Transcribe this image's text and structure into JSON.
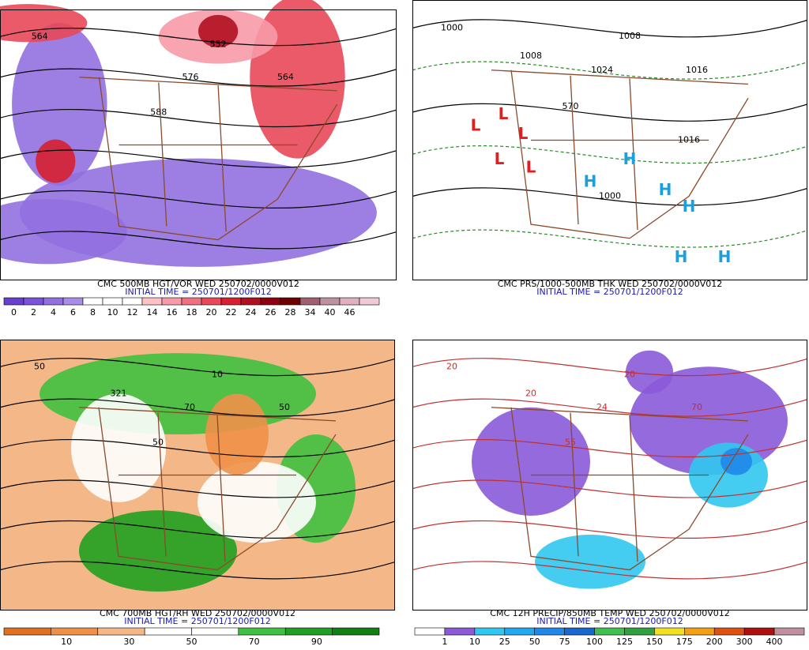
{
  "panels": [
    {
      "caption": "CMC 500MB HGT/VOR WED 250702/0000V012",
      "initial": "INITIAL TIME = 250701/1200F012",
      "colorbar": {
        "colors": [
          "#6a3ed0",
          "#7c52dc",
          "#9270e0",
          "#a88ee8",
          "#ffffff",
          "#ffffff",
          "#ffffff",
          "#ffc0c8",
          "#f89aa8",
          "#f07080",
          "#e84858",
          "#d82030",
          "#b01020",
          "#900010",
          "#700000",
          "#a06070",
          "#c090a0",
          "#e0b0c0",
          "#f0c8d8"
        ],
        "labels": [
          "0",
          "2",
          "4",
          "6",
          "8",
          "10",
          "12",
          "14",
          "16",
          "18",
          "20",
          "22",
          "24",
          "26",
          "28",
          "34",
          "40",
          "46"
        ]
      },
      "map_labels": [
        "564",
        "552",
        "564",
        "576",
        "588"
      ]
    },
    {
      "caption": "CMC PRS/1000-500MB THK WED 250702/0000V012",
      "initial": "INITIAL TIME = 250701/1200F012",
      "map_labels": [
        "1000",
        "1008",
        "1016",
        "1024",
        "570",
        "1008",
        "1016",
        "1000"
      ],
      "symbols": [
        "L",
        "L",
        "L",
        "L",
        "L",
        "H",
        "H",
        "H",
        "H",
        "H",
        "H"
      ]
    },
    {
      "caption": "CMC 700MB HGT/RH WED 250702/0000V012",
      "initial": "INITIAL TIME = 250701/1200F012",
      "colorbar": {
        "colors": [
          "#e07020",
          "#f09048",
          "#f4b888",
          "#ffffff",
          "#ffffff",
          "#40c040",
          "#20a020",
          "#108010"
        ],
        "labels": [
          "10",
          "30",
          "50",
          "70",
          "90"
        ]
      },
      "map_labels": [
        "50",
        "10",
        "50",
        "70",
        "50",
        "321"
      ]
    },
    {
      "caption": "CMC 12H PRECIP/850MB TEMP WED 250702/0000V012",
      "initial": "INITIAL TIME = 250701/1200F012",
      "colorbar": {
        "colors": [
          "#ffffff",
          "#8a5ad8",
          "#30c8f0",
          "#20a8f0",
          "#2088e8",
          "#1868d0",
          "#40c050",
          "#30a040",
          "#f0e020",
          "#f0a010",
          "#e05010",
          "#b01010",
          "#c090a0"
        ],
        "labels": [
          "1",
          "10",
          "25",
          "50",
          "75",
          "100",
          "125",
          "150",
          "175",
          "200",
          "300",
          "400"
        ]
      },
      "map_labels": [
        "20",
        "20",
        "70",
        "24",
        "55",
        "20"
      ]
    }
  ]
}
